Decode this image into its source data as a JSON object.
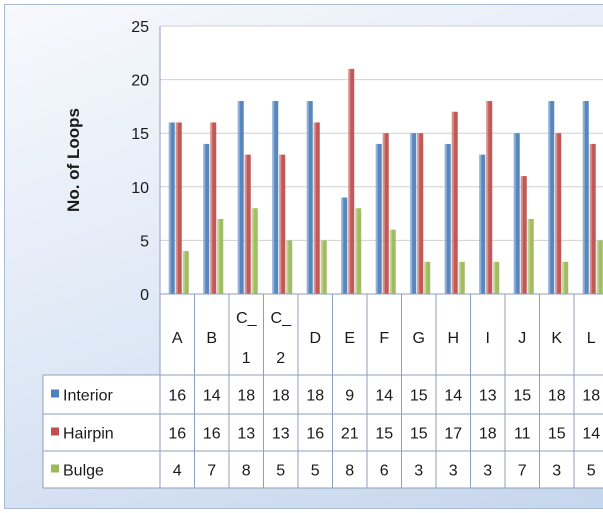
{
  "chart_data": {
    "type": "bar",
    "ylabel": "No. of Loops",
    "ylim": [
      0,
      25
    ],
    "yticks": [
      0,
      5,
      10,
      15,
      20,
      25
    ],
    "categories": [
      {
        "line1": "A",
        "line2": ""
      },
      {
        "line1": "B",
        "line2": ""
      },
      {
        "line1": "C_",
        "line2": "1"
      },
      {
        "line1": "C_",
        "line2": "2"
      },
      {
        "line1": "D",
        "line2": ""
      },
      {
        "line1": "E",
        "line2": ""
      },
      {
        "line1": "F",
        "line2": ""
      },
      {
        "line1": "G",
        "line2": ""
      },
      {
        "line1": "H",
        "line2": ""
      },
      {
        "line1": "I",
        "line2": ""
      },
      {
        "line1": "J",
        "line2": ""
      },
      {
        "line1": "K",
        "line2": ""
      },
      {
        "line1": "L",
        "line2": ""
      }
    ],
    "series": [
      {
        "name": "Interior",
        "color": "#4f81bd",
        "values": [
          16,
          14,
          18,
          18,
          18,
          9,
          14,
          15,
          14,
          13,
          15,
          18,
          18
        ]
      },
      {
        "name": "Hairpin",
        "color": "#c0504d",
        "values": [
          16,
          16,
          13,
          13,
          16,
          21,
          15,
          15,
          17,
          18,
          11,
          15,
          14
        ]
      },
      {
        "name": "Bulge",
        "color": "#9bbb59",
        "values": [
          4,
          7,
          8,
          5,
          5,
          8,
          6,
          3,
          3,
          3,
          7,
          3,
          5
        ]
      }
    ],
    "grid": true,
    "legend": "data-table"
  }
}
